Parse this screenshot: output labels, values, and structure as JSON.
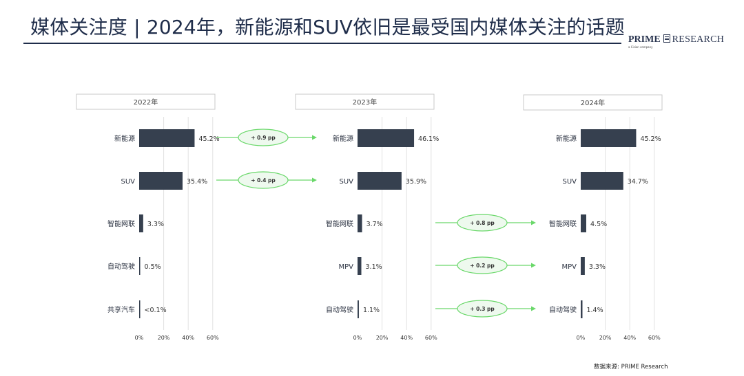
{
  "title": "媒体关注度 | 2024年，新能源和SUV依旧是最受国内媒体关注的话题",
  "logo": {
    "prime": "PRIME",
    "research": "RESEARCH",
    "sub": "a Cision company"
  },
  "source": "数据来源: PRIME Research",
  "colors": {
    "bar": "#36404f",
    "arrow": "#6ad86a",
    "ellipse_fill": "#eef9ee",
    "grid": "#e2e2e2",
    "title": "#1f2d4a"
  },
  "chart_data": [
    {
      "type": "bar",
      "orientation": "horizontal",
      "title": "2022年",
      "categories": [
        "新能源",
        "SUV",
        "智能网联",
        "自动驾驶",
        "共享汽车"
      ],
      "values": [
        45.2,
        35.4,
        3.3,
        0.5,
        0.1
      ],
      "value_labels": [
        "45.2%",
        "35.4%",
        "3.3%",
        "0.5%",
        "<0.1%"
      ],
      "xticks": [
        "0%",
        "20%",
        "40%",
        "60%"
      ],
      "xlim": [
        0,
        60
      ],
      "unit": "%"
    },
    {
      "type": "bar",
      "orientation": "horizontal",
      "title": "2023年",
      "categories": [
        "新能源",
        "SUV",
        "智能网联",
        "MPV",
        "自动驾驶"
      ],
      "values": [
        46.1,
        35.9,
        3.7,
        3.1,
        1.1
      ],
      "value_labels": [
        "46.1%",
        "35.9%",
        "3.7%",
        "3.1%",
        "1.1%"
      ],
      "xticks": [
        "0%",
        "20%",
        "40%",
        "60%"
      ],
      "xlim": [
        0,
        60
      ],
      "unit": "%"
    },
    {
      "type": "bar",
      "orientation": "horizontal",
      "title": "2024年",
      "categories": [
        "新能源",
        "SUV",
        "智能网联",
        "MPV",
        "自动驾驶"
      ],
      "values": [
        45.2,
        34.7,
        4.5,
        3.3,
        1.4
      ],
      "value_labels": [
        "45.2%",
        "34.7%",
        "4.5%",
        "3.3%",
        "1.4%"
      ],
      "xticks": [
        "0%",
        "20%",
        "40%",
        "60%"
      ],
      "xlim": [
        0,
        60
      ],
      "unit": "%"
    }
  ],
  "changes": [
    {
      "from_panel": 0,
      "to_panel": 1,
      "row": 0,
      "label": "+ 0.9 pp"
    },
    {
      "from_panel": 0,
      "to_panel": 1,
      "row": 1,
      "label": "+ 0.4 pp"
    },
    {
      "from_panel": 1,
      "to_panel": 2,
      "row": 2,
      "label": "+ 0.8 pp"
    },
    {
      "from_panel": 1,
      "to_panel": 2,
      "row": 3,
      "label": "+ 0.2 pp"
    },
    {
      "from_panel": 1,
      "to_panel": 2,
      "row": 4,
      "label": "+ 0.3 pp"
    }
  ]
}
